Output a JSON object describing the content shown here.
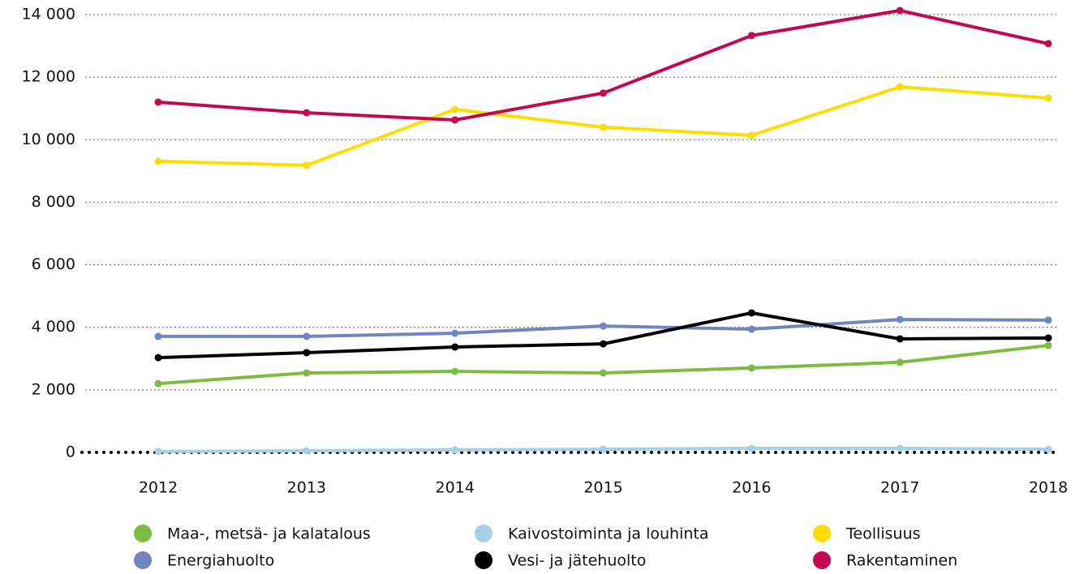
{
  "chart_data": {
    "type": "line",
    "categories": [
      "2012",
      "2013",
      "2014",
      "2015",
      "2016",
      "2017",
      "2018"
    ],
    "ylim": [
      0,
      14000
    ],
    "yticks": [
      0,
      {
        "value": 2000,
        "label": "2 000"
      },
      {
        "value": 4000,
        "label": "4 000"
      },
      {
        "value": 6000,
        "label": "6 000"
      },
      {
        "value": 8000,
        "label": "8 000"
      },
      {
        "value": 10000,
        "label": "10 000"
      },
      {
        "value": 12000,
        "label": "12 000"
      },
      {
        "value": 14000,
        "label": "14 000"
      }
    ],
    "grid": true,
    "legend": "bottom",
    "series": [
      {
        "name": "Maa-, metsä- ja kalatalous",
        "color": "#7dbb42",
        "values": [
          2200,
          2540,
          2590,
          2540,
          2700,
          2880,
          3420
        ]
      },
      {
        "name": "Kaivostoiminta ja louhinta",
        "color": "#a6cfe8",
        "values": [
          30,
          50,
          80,
          100,
          130,
          130,
          100
        ]
      },
      {
        "name": "Teollisuus",
        "color": "#ffdd00",
        "values": [
          9310,
          9180,
          10970,
          10400,
          10140,
          11690,
          11330
        ]
      },
      {
        "name": "Energiahuolto",
        "color": "#6f86c1",
        "values": [
          3710,
          3710,
          3810,
          4040,
          3940,
          4250,
          4230
        ]
      },
      {
        "name": "Vesi- ja jätehuolto",
        "color": "#000000",
        "values": [
          3030,
          3190,
          3370,
          3470,
          4460,
          3630,
          3660
        ]
      },
      {
        "name": "Rakentaminen",
        "color": "#c3084f",
        "values": [
          11200,
          10860,
          10630,
          11490,
          13330,
          14130,
          13070
        ]
      }
    ]
  }
}
